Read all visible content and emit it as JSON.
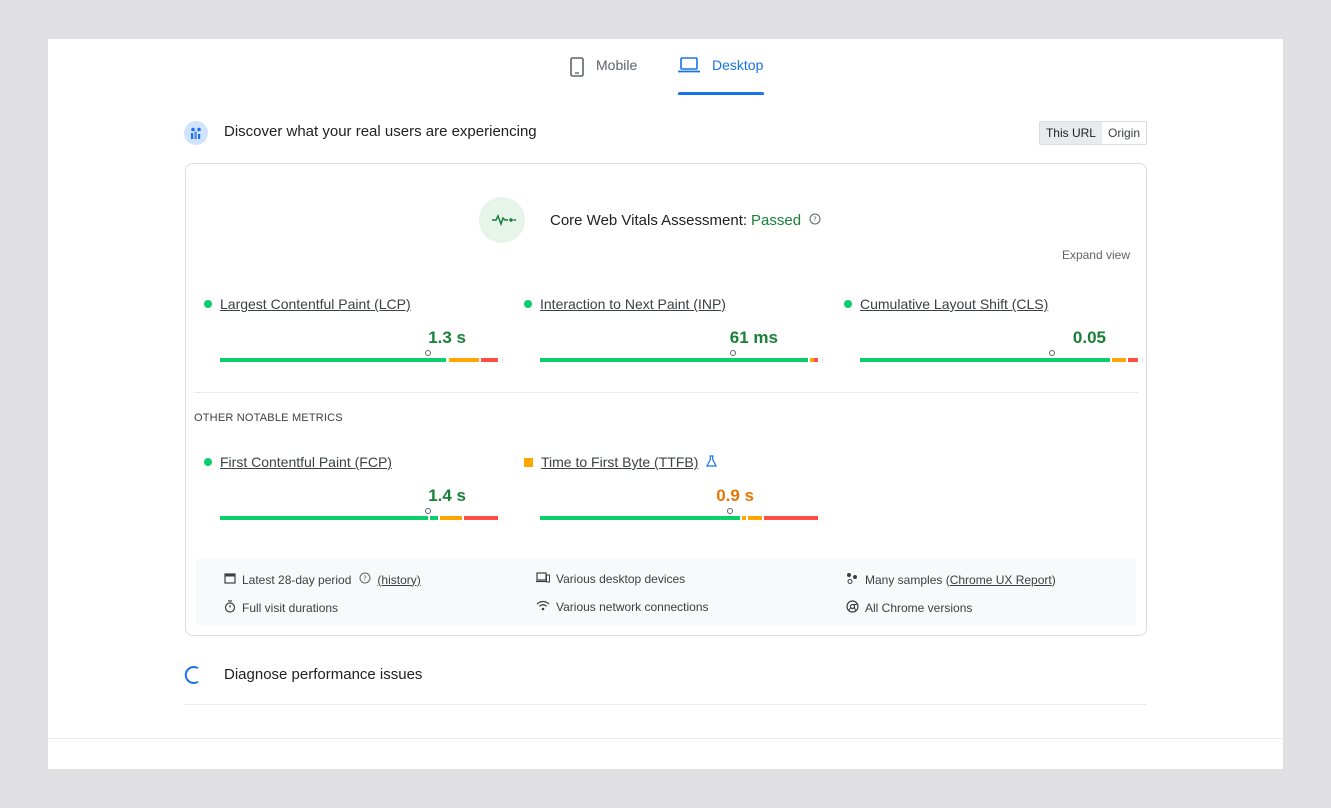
{
  "tabs": [
    {
      "label": "Mobile",
      "icon": "phone-icon",
      "active": false
    },
    {
      "label": "Desktop",
      "icon": "laptop-icon",
      "active": true
    }
  ],
  "field_section": {
    "title": "Discover what your real users are experiencing",
    "toggle": {
      "this_url": "This URL",
      "origin": "Origin"
    }
  },
  "assessment": {
    "label": "Core Web Vitals Assessment:",
    "status": "Passed",
    "expand": "Expand view"
  },
  "core_metrics": [
    {
      "name": "Largest Contentful Paint (LCP)",
      "value": "1.3 s",
      "rating": "good"
    },
    {
      "name": "Interaction to Next Paint (INP)",
      "value": "61 ms",
      "rating": "good"
    },
    {
      "name": "Cumulative Layout Shift (CLS)",
      "value": "0.05",
      "rating": "good"
    }
  ],
  "other_label": "OTHER NOTABLE METRICS",
  "other_metrics": [
    {
      "name": "First Contentful Paint (FCP)",
      "value": "1.4 s",
      "rating": "good"
    },
    {
      "name": "Time to First Byte (TTFB)",
      "value": "0.9 s",
      "rating": "needs-improvement"
    }
  ],
  "info": {
    "period": "Latest 28-day period",
    "history": "(history)",
    "durations": "Full visit durations",
    "devices": "Various desktop devices",
    "network": "Various network connections",
    "samples_prefix": "Many samples (",
    "samples_link": "Chrome UX Report",
    "samples_suffix": ")",
    "versions": "All Chrome versions"
  },
  "diagnose": {
    "title": "Diagnose performance issues"
  },
  "colors": {
    "good": "#0cce6b",
    "needs_improvement": "#ffa400",
    "poor": "#ff4e42",
    "accent": "#1a73e8",
    "pass_text": "#188038"
  }
}
